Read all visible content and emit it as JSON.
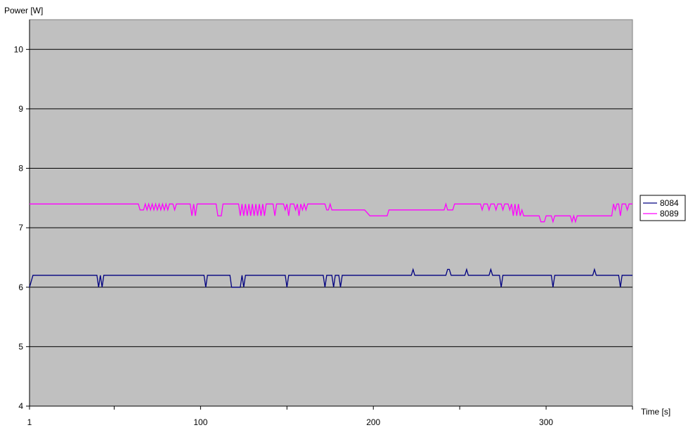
{
  "chart_data": {
    "type": "line",
    "ylabel": "Power [W]",
    "xlabel": "Time [s]",
    "ylim": [
      4,
      10.5
    ],
    "xlim": [
      1,
      350
    ],
    "y_ticks": [
      4,
      5,
      6,
      7,
      8,
      9,
      10
    ],
    "x_ticks_labeled": [
      1,
      100,
      200,
      300
    ],
    "x_ticks_minor": [
      50,
      150,
      250,
      350
    ],
    "grid": "horizontal",
    "plot_background": "#c0c0c0",
    "legend_position": "right",
    "series": [
      {
        "name": "8084",
        "color": "#000080",
        "points": [
          [
            1,
            6.0
          ],
          [
            3,
            6.2
          ],
          [
            40,
            6.2
          ],
          [
            41,
            6.0
          ],
          [
            42,
            6.2
          ],
          [
            43,
            6.0
          ],
          [
            44,
            6.2
          ],
          [
            102,
            6.2
          ],
          [
            103,
            6.0
          ],
          [
            104,
            6.2
          ],
          [
            117,
            6.2
          ],
          [
            118,
            6.0
          ],
          [
            123,
            6.0
          ],
          [
            124,
            6.2
          ],
          [
            125,
            6.0
          ],
          [
            126,
            6.2
          ],
          [
            149,
            6.2
          ],
          [
            150,
            6.0
          ],
          [
            151,
            6.2
          ],
          [
            171,
            6.2
          ],
          [
            172,
            6.0
          ],
          [
            173,
            6.2
          ],
          [
            176,
            6.2
          ],
          [
            177,
            6.0
          ],
          [
            178,
            6.2
          ],
          [
            180,
            6.2
          ],
          [
            181,
            6.0
          ],
          [
            182,
            6.2
          ],
          [
            222,
            6.2
          ],
          [
            223,
            6.3
          ],
          [
            224,
            6.2
          ],
          [
            242,
            6.2
          ],
          [
            243,
            6.3
          ],
          [
            244,
            6.3
          ],
          [
            245,
            6.2
          ],
          [
            253,
            6.2
          ],
          [
            254,
            6.3
          ],
          [
            255,
            6.2
          ],
          [
            267,
            6.2
          ],
          [
            268,
            6.3
          ],
          [
            269,
            6.2
          ],
          [
            273,
            6.2
          ],
          [
            274,
            6.0
          ],
          [
            275,
            6.2
          ],
          [
            303,
            6.2
          ],
          [
            304,
            6.0
          ],
          [
            305,
            6.2
          ],
          [
            327,
            6.2
          ],
          [
            328,
            6.3
          ],
          [
            329,
            6.2
          ],
          [
            342,
            6.2
          ],
          [
            343,
            6.0
          ],
          [
            344,
            6.2
          ],
          [
            350,
            6.2
          ]
        ]
      },
      {
        "name": "8089",
        "color": "#ff00ff",
        "points": [
          [
            1,
            7.4
          ],
          [
            64,
            7.4
          ],
          [
            65,
            7.3
          ],
          [
            67,
            7.3
          ],
          [
            68,
            7.4
          ],
          [
            69,
            7.3
          ],
          [
            70,
            7.4
          ],
          [
            71,
            7.3
          ],
          [
            72,
            7.4
          ],
          [
            73,
            7.3
          ],
          [
            74,
            7.4
          ],
          [
            75,
            7.3
          ],
          [
            76,
            7.4
          ],
          [
            77,
            7.3
          ],
          [
            78,
            7.4
          ],
          [
            79,
            7.3
          ],
          [
            80,
            7.4
          ],
          [
            81,
            7.3
          ],
          [
            82,
            7.4
          ],
          [
            84,
            7.4
          ],
          [
            85,
            7.3
          ],
          [
            86,
            7.4
          ],
          [
            94,
            7.4
          ],
          [
            95,
            7.2
          ],
          [
            96,
            7.4
          ],
          [
            97,
            7.2
          ],
          [
            98,
            7.4
          ],
          [
            109,
            7.4
          ],
          [
            110,
            7.2
          ],
          [
            112,
            7.2
          ],
          [
            113,
            7.4
          ],
          [
            122,
            7.4
          ],
          [
            123,
            7.2
          ],
          [
            124,
            7.4
          ],
          [
            125,
            7.2
          ],
          [
            126,
            7.4
          ],
          [
            127,
            7.2
          ],
          [
            128,
            7.4
          ],
          [
            129,
            7.2
          ],
          [
            130,
            7.4
          ],
          [
            131,
            7.2
          ],
          [
            132,
            7.4
          ],
          [
            133,
            7.2
          ],
          [
            134,
            7.4
          ],
          [
            135,
            7.2
          ],
          [
            136,
            7.4
          ],
          [
            137,
            7.2
          ],
          [
            138,
            7.4
          ],
          [
            142,
            7.4
          ],
          [
            143,
            7.2
          ],
          [
            144,
            7.4
          ],
          [
            148,
            7.4
          ],
          [
            149,
            7.3
          ],
          [
            150,
            7.4
          ],
          [
            151,
            7.2
          ],
          [
            152,
            7.4
          ],
          [
            154,
            7.4
          ],
          [
            155,
            7.3
          ],
          [
            156,
            7.4
          ],
          [
            157,
            7.2
          ],
          [
            158,
            7.4
          ],
          [
            159,
            7.3
          ],
          [
            160,
            7.4
          ],
          [
            161,
            7.3
          ],
          [
            162,
            7.4
          ],
          [
            172,
            7.4
          ],
          [
            173,
            7.3
          ],
          [
            174,
            7.3
          ],
          [
            175,
            7.4
          ],
          [
            176,
            7.3
          ],
          [
            194,
            7.3
          ],
          [
            195,
            7.3
          ],
          [
            198,
            7.2
          ],
          [
            208,
            7.2
          ],
          [
            209,
            7.3
          ],
          [
            241,
            7.3
          ],
          [
            242,
            7.4
          ],
          [
            243,
            7.3
          ],
          [
            246,
            7.3
          ],
          [
            247,
            7.4
          ],
          [
            262,
            7.4
          ],
          [
            263,
            7.3
          ],
          [
            264,
            7.4
          ],
          [
            266,
            7.4
          ],
          [
            267,
            7.3
          ],
          [
            268,
            7.4
          ],
          [
            270,
            7.4
          ],
          [
            271,
            7.3
          ],
          [
            272,
            7.4
          ],
          [
            274,
            7.4
          ],
          [
            275,
            7.3
          ],
          [
            276,
            7.4
          ],
          [
            278,
            7.4
          ],
          [
            279,
            7.3
          ],
          [
            280,
            7.4
          ],
          [
            281,
            7.2
          ],
          [
            282,
            7.4
          ],
          [
            283,
            7.2
          ],
          [
            284,
            7.4
          ],
          [
            285,
            7.2
          ],
          [
            286,
            7.3
          ],
          [
            287,
            7.2
          ],
          [
            296,
            7.2
          ],
          [
            297,
            7.1
          ],
          [
            299,
            7.1
          ],
          [
            300,
            7.2
          ],
          [
            303,
            7.2
          ],
          [
            304,
            7.1
          ],
          [
            305,
            7.2
          ],
          [
            314,
            7.2
          ],
          [
            315,
            7.1
          ],
          [
            316,
            7.2
          ],
          [
            317,
            7.1
          ],
          [
            318,
            7.2
          ],
          [
            338,
            7.2
          ],
          [
            339,
            7.4
          ],
          [
            340,
            7.3
          ],
          [
            341,
            7.4
          ],
          [
            342,
            7.4
          ],
          [
            343,
            7.2
          ],
          [
            344,
            7.4
          ],
          [
            346,
            7.4
          ],
          [
            347,
            7.3
          ],
          [
            348,
            7.4
          ],
          [
            350,
            7.4
          ]
        ]
      }
    ]
  }
}
